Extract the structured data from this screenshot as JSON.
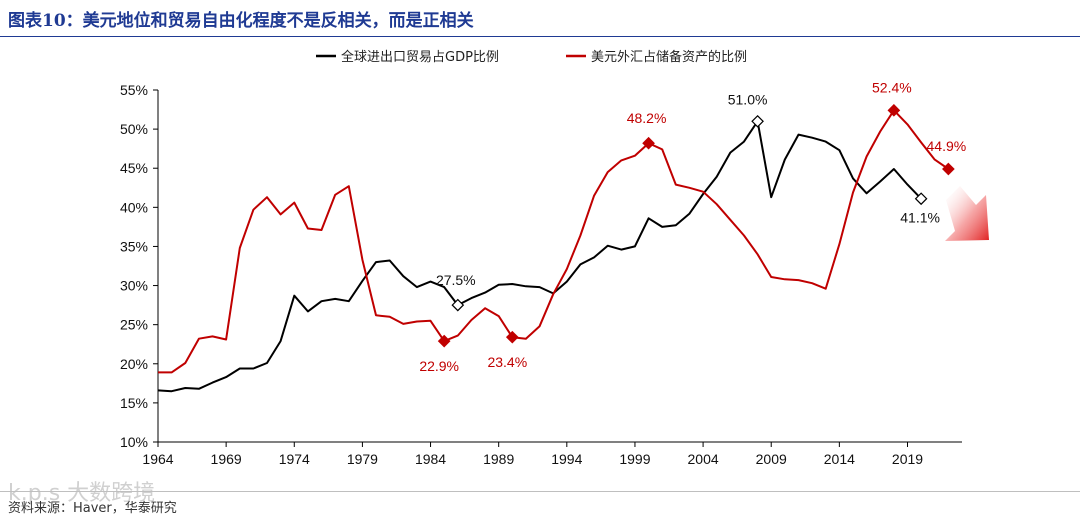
{
  "header": {
    "title": "图表10：美元地位和贸易自由化程度不是反相关，而是正相关"
  },
  "footer": {
    "source": "资料来源：Haver，华泰研究",
    "watermark": "k.p.s 大数跨境"
  },
  "chart_data": {
    "type": "line",
    "ylim": [
      10,
      55
    ],
    "xlim": [
      1964,
      2023
    ],
    "y_tick_labels": [
      "10%",
      "15%",
      "20%",
      "25%",
      "30%",
      "35%",
      "40%",
      "45%",
      "50%",
      "55%"
    ],
    "x_tick_labels": [
      "1964",
      "1969",
      "1974",
      "1979",
      "1984",
      "1989",
      "1994",
      "1999",
      "2004",
      "2009",
      "2014",
      "2019"
    ],
    "series": [
      {
        "name": "全球进出口贸易占GDP比例",
        "color": "#000000",
        "x": [
          1964,
          1965,
          1966,
          1967,
          1968,
          1969,
          1970,
          1971,
          1972,
          1973,
          1974,
          1975,
          1976,
          1977,
          1978,
          1979,
          1980,
          1981,
          1982,
          1983,
          1984,
          1985,
          1986,
          1987,
          1988,
          1989,
          1990,
          1991,
          1992,
          1993,
          1994,
          1995,
          1996,
          1997,
          1998,
          1999,
          2000,
          2001,
          2002,
          2003,
          2004,
          2005,
          2006,
          2007,
          2008,
          2009,
          2010,
          2011,
          2012,
          2013,
          2014,
          2015,
          2016,
          2017,
          2018,
          2019,
          2020
        ],
        "values": [
          16.6,
          16.5,
          16.9,
          16.8,
          17.6,
          18.3,
          19.4,
          19.4,
          20.1,
          22.9,
          28.7,
          26.7,
          28.0,
          28.3,
          28.0,
          30.6,
          33.0,
          33.2,
          31.2,
          29.8,
          30.5,
          29.8,
          27.5,
          28.4,
          29.1,
          30.1,
          30.2,
          29.9,
          29.8,
          29.0,
          30.5,
          32.7,
          33.6,
          35.1,
          34.6,
          35.0,
          38.6,
          37.5,
          37.7,
          39.2,
          41.7,
          43.9,
          47.0,
          48.4,
          51.0,
          41.3,
          46.1,
          49.3,
          48.9,
          48.4,
          47.3,
          43.7,
          41.8,
          43.3,
          44.9,
          42.9,
          41.1
        ]
      },
      {
        "name": "美元外汇占储备资产的比例",
        "color": "#c00000",
        "x": [
          1964,
          1965,
          1966,
          1967,
          1968,
          1969,
          1970,
          1971,
          1972,
          1973,
          1974,
          1975,
          1976,
          1977,
          1978,
          1979,
          1980,
          1981,
          1982,
          1983,
          1984,
          1985,
          1986,
          1987,
          1988,
          1989,
          1990,
          1991,
          1992,
          1993,
          1994,
          1995,
          1996,
          1997,
          1998,
          1999,
          2000,
          2001,
          2002,
          2003,
          2004,
          2005,
          2006,
          2007,
          2008,
          2009,
          2010,
          2011,
          2012,
          2013,
          2014,
          2015,
          2016,
          2017,
          2018,
          2019,
          2020,
          2021,
          2022
        ],
        "values": [
          18.9,
          18.9,
          20.1,
          23.2,
          23.5,
          23.1,
          34.8,
          39.7,
          41.3,
          39.1,
          40.6,
          37.3,
          37.1,
          41.6,
          42.7,
          33.3,
          26.2,
          26.0,
          25.1,
          25.4,
          25.5,
          22.9,
          23.6,
          25.6,
          27.1,
          26.1,
          23.4,
          23.2,
          24.8,
          28.9,
          32.1,
          36.4,
          41.5,
          44.5,
          46.0,
          46.6,
          48.2,
          47.4,
          42.9,
          42.5,
          42.0,
          40.4,
          38.4,
          36.4,
          34.0,
          31.1,
          30.8,
          30.7,
          30.3,
          29.6,
          35.3,
          41.9,
          46.5,
          49.7,
          52.4,
          50.6,
          48.3,
          46.1,
          44.9
        ]
      }
    ],
    "annotations": [
      {
        "series": 1,
        "x": 1985,
        "y": 22.9,
        "label": "22.9%",
        "marker": "filled"
      },
      {
        "series": 0,
        "x": 1986,
        "y": 27.5,
        "label": "27.5%",
        "marker": "hollow"
      },
      {
        "series": 1,
        "x": 1990,
        "y": 23.4,
        "label": "23.4%",
        "marker": "filled"
      },
      {
        "series": 1,
        "x": 2000,
        "y": 48.2,
        "label": "48.2%",
        "marker": "filled"
      },
      {
        "series": 0,
        "x": 2008,
        "y": 51.0,
        "label": "51.0%",
        "marker": "hollow"
      },
      {
        "series": 1,
        "x": 2018,
        "y": 52.4,
        "label": "52.4%",
        "marker": "filled"
      },
      {
        "series": 0,
        "x": 2020,
        "y": 41.1,
        "label": "41.1%",
        "marker": "hollow"
      },
      {
        "series": 1,
        "x": 2022,
        "y": 44.9,
        "label": "44.9%",
        "marker": "filled"
      }
    ],
    "grid": false,
    "legend_position": "top-center",
    "trend_arrow_color": "#e02020"
  }
}
